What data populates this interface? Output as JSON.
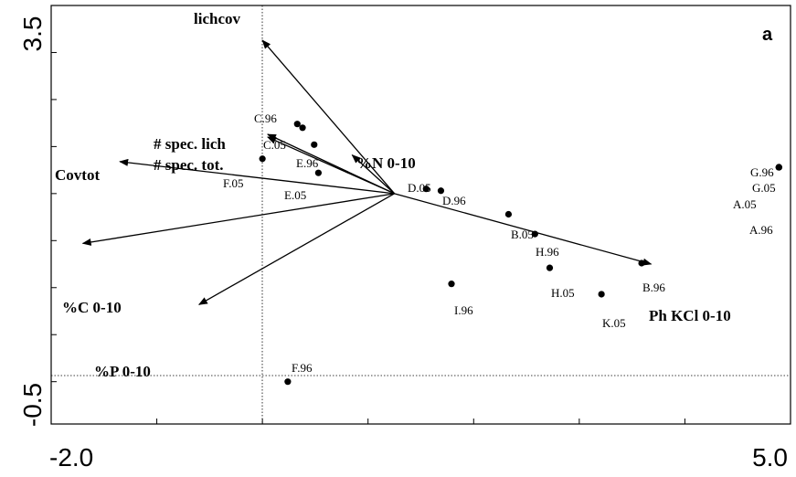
{
  "chart_data": {
    "type": "biplot",
    "panel_label": "a",
    "x_ticks": [
      "-2.0",
      "5.0"
    ],
    "y_ticks": [
      "3.5",
      "-0.5"
    ],
    "xlim": [
      -2.0,
      5.0
    ],
    "ylim": [
      -0.5,
      3.5
    ],
    "origin": [
      1.25,
      1.5
    ],
    "vectors": [
      {
        "label": "lichcov",
        "x": 0.0,
        "y": 3.13
      },
      {
        "label": "# spec. lich",
        "x": 0.05,
        "y": 2.13
      },
      {
        "label": "# spec. tot.",
        "x": 0.05,
        "y": 2.1
      },
      {
        "label": "Covtot",
        "x": -1.35,
        "y": 1.84
      },
      {
        "label": "%N 0-10",
        "x": 0.85,
        "y": 1.91
      },
      {
        "label": "%C 0-10",
        "x": -1.7,
        "y": 0.97
      },
      {
        "label": "%P 0-10",
        "x": -0.6,
        "y": 0.32
      },
      {
        "label": "Ph KCl 0-10",
        "x": 3.68,
        "y": 0.75
      }
    ],
    "samples": [
      {
        "label": "C.96",
        "x": 0.33,
        "y": 2.24
      },
      {
        "label": "C.05",
        "x": 0.38,
        "y": 2.2
      },
      {
        "label": "E.96",
        "x": 0.49,
        "y": 2.02
      },
      {
        "label": "F.05",
        "x": 0.0,
        "y": 1.87
      },
      {
        "label": "E.05",
        "x": 0.53,
        "y": 1.72
      },
      {
        "label": "D.05",
        "x": 1.55,
        "y": 1.55
      },
      {
        "label": "D.96",
        "x": 1.69,
        "y": 1.53
      },
      {
        "label": "B.05",
        "x": 2.33,
        "y": 1.28
      },
      {
        "label": "H.96",
        "x": 2.58,
        "y": 1.07
      },
      {
        "label": "H.05",
        "x": 2.72,
        "y": 0.71
      },
      {
        "label": "B.96",
        "x": 3.59,
        "y": 0.76
      },
      {
        "label": "K.05",
        "x": 3.21,
        "y": 0.43
      },
      {
        "label": "I.96",
        "x": 1.79,
        "y": 0.54
      },
      {
        "label": "F.96",
        "x": 0.24,
        "y": -0.5
      },
      {
        "label": "G.96",
        "x": 4.89,
        "y": 1.78
      },
      {
        "label": "G.05",
        "x": 4.89,
        "y": 1.78
      },
      {
        "label": "A.05",
        "x": 4.89,
        "y": 1.78
      },
      {
        "label": "A.96",
        "x": 4.89,
        "y": 1.78
      }
    ]
  }
}
